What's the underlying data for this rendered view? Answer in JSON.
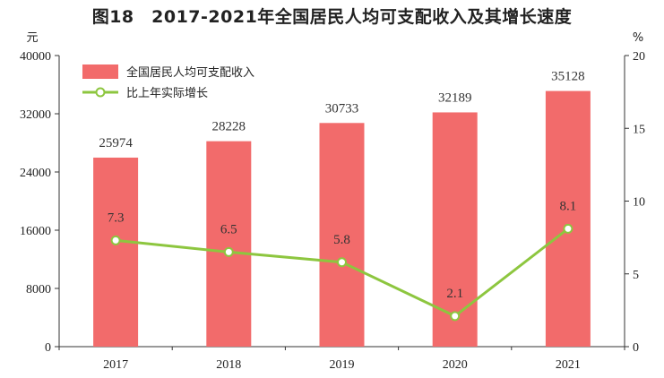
{
  "chart_data": {
    "type": "bar",
    "title": "图18　2017-2021年全国居民人均可支配收入及其增长速度",
    "categories": [
      "2017",
      "2018",
      "2019",
      "2020",
      "2021"
    ],
    "series": [
      {
        "name": "全国居民人均可支配收入",
        "type": "bar",
        "axis": "left",
        "values": [
          25974,
          28228,
          30733,
          32189,
          35128
        ],
        "color": "#f26b6b"
      },
      {
        "name": "比上年实际增长",
        "type": "line",
        "axis": "right",
        "values": [
          7.3,
          6.5,
          5.8,
          2.1,
          8.1
        ],
        "labels": [
          "7.3",
          "6.5",
          "5.8",
          "2.1",
          "8.1"
        ],
        "color": "#8dc63f"
      }
    ],
    "y_left": {
      "unit": "元",
      "min": 0,
      "max": 40000,
      "ticks": [
        0,
        8000,
        16000,
        24000,
        32000,
        40000
      ]
    },
    "y_right": {
      "unit": "%",
      "min": 0,
      "max": 20,
      "ticks": [
        0,
        5,
        10,
        15,
        20
      ]
    },
    "legend_position": "top-left",
    "grid": false
  }
}
